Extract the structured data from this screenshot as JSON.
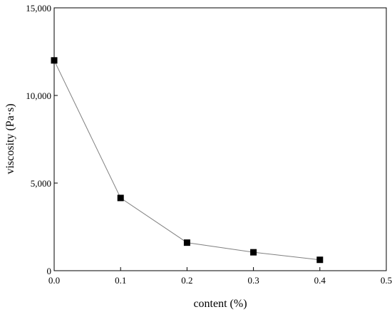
{
  "chart_data": {
    "type": "line",
    "xlabel": "content (%)",
    "ylabel": "viscosity (Pa·s)",
    "xlim": [
      0,
      0.5
    ],
    "ylim": [
      0,
      15000
    ],
    "x_ticks": [
      0.0,
      0.1,
      0.2,
      0.3,
      0.4,
      0.5
    ],
    "x_tick_labels": [
      "0.0",
      "0.1",
      "0.2",
      "0.3",
      "0.4",
      "0.5"
    ],
    "y_ticks": [
      0,
      5000,
      10000,
      15000
    ],
    "y_tick_labels": [
      "0",
      "5,000",
      "10,000",
      "15,000"
    ],
    "grid": false,
    "line_color": "#808080",
    "marker": "square",
    "marker_color": "#000000",
    "series": [
      {
        "x": [
          0.0,
          0.1,
          0.2,
          0.3,
          0.4
        ],
        "values": [
          12000,
          4150,
          1600,
          1050,
          620
        ]
      }
    ]
  }
}
